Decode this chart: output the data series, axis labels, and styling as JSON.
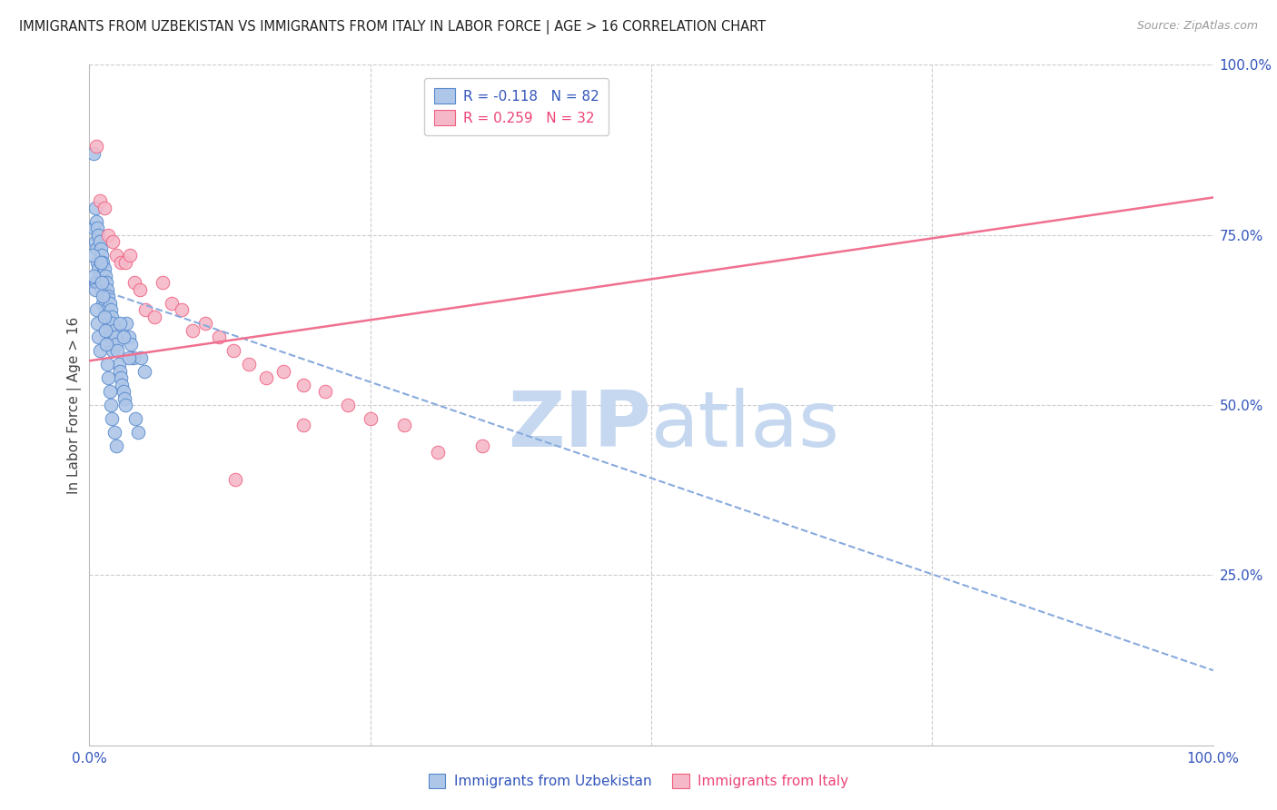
{
  "title": "IMMIGRANTS FROM UZBEKISTAN VS IMMIGRANTS FROM ITALY IN LABOR FORCE | AGE > 16 CORRELATION CHART",
  "source": "Source: ZipAtlas.com",
  "ylabel": "In Labor Force | Age > 16",
  "xlim": [
    0.0,
    1.0
  ],
  "ylim": [
    0.0,
    1.0
  ],
  "xticks": [
    0.0,
    0.25,
    0.5,
    0.75,
    1.0
  ],
  "xticklabels": [
    "0.0%",
    "",
    "",
    "",
    "100.0%"
  ],
  "ytick_positions_right": [
    1.0,
    0.75,
    0.5,
    0.25,
    0.0
  ],
  "ytick_labels_right": [
    "100.0%",
    "75.0%",
    "50.0%",
    "25.0%",
    ""
  ],
  "uzbekistan_color": "#aec6e8",
  "italy_color": "#f5b8c8",
  "uzbekistan_edge_color": "#5588cc",
  "italy_edge_color": "#f06080",
  "uzbekistan_line_color": "#88aadd",
  "italy_line_color": "#f07090",
  "legend_R_uzbekistan": "-0.118",
  "legend_N_uzbekistan": "82",
  "legend_R_italy": "0.259",
  "legend_N_italy": "32",
  "watermark_zip": "ZIP",
  "watermark_atlas": "atlas",
  "watermark_color_zip": "#c5d8f0",
  "watermark_color_atlas": "#c5d8f0",
  "uzbekistan_x": [
    0.004,
    0.004,
    0.005,
    0.005,
    0.005,
    0.006,
    0.006,
    0.006,
    0.007,
    0.007,
    0.008,
    0.008,
    0.009,
    0.009,
    0.01,
    0.01,
    0.01,
    0.011,
    0.011,
    0.012,
    0.012,
    0.012,
    0.013,
    0.013,
    0.014,
    0.014,
    0.015,
    0.015,
    0.016,
    0.016,
    0.017,
    0.017,
    0.018,
    0.018,
    0.019,
    0.019,
    0.02,
    0.02,
    0.021,
    0.021,
    0.022,
    0.023,
    0.024,
    0.025,
    0.026,
    0.027,
    0.028,
    0.029,
    0.03,
    0.031,
    0.032,
    0.033,
    0.035,
    0.037,
    0.039,
    0.041,
    0.043,
    0.046,
    0.049,
    0.003,
    0.004,
    0.005,
    0.006,
    0.007,
    0.008,
    0.009,
    0.01,
    0.011,
    0.012,
    0.013,
    0.014,
    0.015,
    0.016,
    0.017,
    0.018,
    0.019,
    0.02,
    0.022,
    0.024,
    0.027,
    0.03,
    0.035
  ],
  "uzbekistan_y": [
    0.87,
    0.76,
    0.79,
    0.74,
    0.68,
    0.77,
    0.73,
    0.68,
    0.76,
    0.71,
    0.75,
    0.7,
    0.74,
    0.69,
    0.73,
    0.71,
    0.68,
    0.72,
    0.67,
    0.71,
    0.69,
    0.65,
    0.7,
    0.66,
    0.69,
    0.65,
    0.68,
    0.64,
    0.67,
    0.63,
    0.66,
    0.62,
    0.65,
    0.61,
    0.64,
    0.6,
    0.63,
    0.59,
    0.62,
    0.58,
    0.61,
    0.6,
    0.59,
    0.58,
    0.56,
    0.55,
    0.54,
    0.53,
    0.52,
    0.51,
    0.5,
    0.62,
    0.6,
    0.59,
    0.57,
    0.48,
    0.46,
    0.57,
    0.55,
    0.72,
    0.69,
    0.67,
    0.64,
    0.62,
    0.6,
    0.58,
    0.71,
    0.68,
    0.66,
    0.63,
    0.61,
    0.59,
    0.56,
    0.54,
    0.52,
    0.5,
    0.48,
    0.46,
    0.44,
    0.62,
    0.6,
    0.57
  ],
  "italy_x": [
    0.006,
    0.009,
    0.013,
    0.017,
    0.021,
    0.024,
    0.028,
    0.032,
    0.036,
    0.04,
    0.045,
    0.05,
    0.058,
    0.065,
    0.073,
    0.082,
    0.092,
    0.103,
    0.115,
    0.128,
    0.142,
    0.157,
    0.173,
    0.19,
    0.21,
    0.23,
    0.25,
    0.28,
    0.31,
    0.35,
    0.13,
    0.19
  ],
  "italy_y": [
    0.88,
    0.8,
    0.79,
    0.75,
    0.74,
    0.72,
    0.71,
    0.71,
    0.72,
    0.68,
    0.67,
    0.64,
    0.63,
    0.68,
    0.65,
    0.64,
    0.61,
    0.62,
    0.6,
    0.58,
    0.56,
    0.54,
    0.55,
    0.53,
    0.52,
    0.5,
    0.48,
    0.47,
    0.43,
    0.44,
    0.39,
    0.47
  ],
  "uzbekistan_trend_x": [
    0.0,
    1.0
  ],
  "uzbekistan_trend_y": [
    0.675,
    0.11
  ],
  "italy_trend_x": [
    0.0,
    1.0
  ],
  "italy_trend_y": [
    0.565,
    0.805
  ]
}
